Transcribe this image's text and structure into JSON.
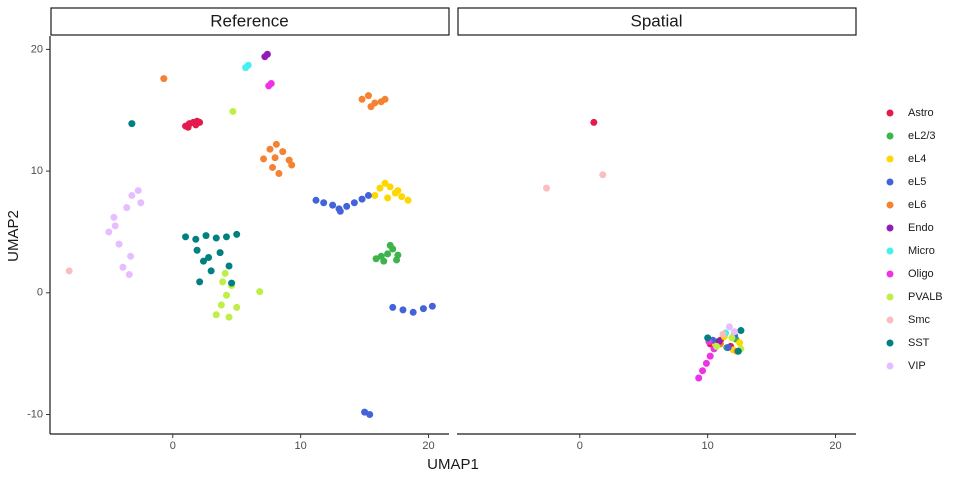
{
  "chart_data": {
    "type": "scatter",
    "facets": [
      "Reference",
      "Spatial"
    ],
    "xlabel": "UMAP1",
    "ylabel": "UMAP2",
    "xlim": [
      -9.6,
      21.6
    ],
    "ylim": [
      -11.6,
      21.1
    ],
    "xticks": [
      0,
      10,
      20
    ],
    "yticks": [
      -10,
      0,
      10,
      20
    ],
    "series": [
      {
        "name": "Astro",
        "color": "#e31a4a",
        "points": [
          {
            "x": [
              1.0,
              1.3,
              1.6,
              1.9,
              2.1,
              1.2,
              1.8
            ],
            "y": [
              13.7,
              13.9,
              14.0,
              14.1,
              14.0,
              13.6,
              13.8
            ]
          },
          {
            "x": [
              1.1,
              10.2,
              10.5,
              11.0,
              11.8
            ],
            "y": [
              14.0,
              -4.2,
              -4.6,
              -3.9,
              -4.4
            ]
          }
        ]
      },
      {
        "name": "eL2/3",
        "color": "#3cb44b",
        "points": [
          {
            "x": [
              15.9,
              16.3,
              16.8,
              17.2,
              17.6,
              16.5,
              17.0,
              17.5
            ],
            "y": [
              2.8,
              3.0,
              3.2,
              3.6,
              3.1,
              2.6,
              3.9,
              2.7
            ]
          },
          {
            "x": [
              10.8,
              11.5,
              12.2
            ],
            "y": [
              -4.0,
              -4.5,
              -3.8
            ]
          }
        ]
      },
      {
        "name": "eL4",
        "color": "#ffd700",
        "points": [
          {
            "x": [
              15.8,
              16.2,
              16.6,
              17.0,
              17.4,
              17.9,
              18.4,
              16.8,
              17.6
            ],
            "y": [
              8.0,
              8.6,
              9.0,
              8.7,
              8.2,
              7.9,
              7.6,
              7.8,
              8.4
            ]
          },
          {
            "x": [
              10.6,
              11.3,
              12.0,
              12.5
            ],
            "y": [
              -4.3,
              -3.6,
              -4.7,
              -4.1
            ]
          }
        ]
      },
      {
        "name": "eL5",
        "color": "#4363d8",
        "points": [
          {
            "x": [
              11.2,
              11.8,
              12.5,
              13.0,
              13.6,
              14.2,
              14.8,
              15.3,
              13.1,
              17.2,
              18.0,
              18.8,
              19.6,
              20.3,
              15.0,
              15.4
            ],
            "y": [
              7.6,
              7.4,
              7.2,
              6.9,
              7.1,
              7.4,
              7.7,
              8.0,
              6.7,
              -1.2,
              -1.4,
              -1.6,
              -1.3,
              -1.1,
              -9.8,
              -10.0
            ]
          },
          {
            "x": [
              10.4,
              11.6,
              12.1
            ],
            "y": [
              -3.9,
              -4.5,
              -3.5
            ]
          }
        ]
      },
      {
        "name": "eL6",
        "color": "#f58231",
        "points": [
          {
            "x": [
              14.8,
              15.3,
              15.8,
              16.3,
              16.6,
              15.5,
              7.1,
              7.6,
              8.1,
              8.6,
              9.1,
              9.3,
              8.3,
              7.8,
              8.0,
              -0.7
            ],
            "y": [
              15.9,
              16.2,
              15.6,
              15.7,
              15.9,
              15.3,
              11.0,
              11.8,
              12.2,
              11.6,
              10.9,
              10.5,
              9.8,
              10.3,
              11.1,
              17.6
            ]
          },
          {
            "x": [
              11.0,
              12.3
            ],
            "y": [
              -4.2,
              -4.8
            ]
          }
        ]
      },
      {
        "name": "Endo",
        "color": "#911eb4",
        "points": [
          {
            "x": [
              7.2,
              7.4
            ],
            "y": [
              19.4,
              19.6
            ]
          },
          {
            "x": [
              10.9
            ],
            "y": [
              -4.0
            ]
          }
        ]
      },
      {
        "name": "Micro",
        "color": "#46f0f0",
        "points": [
          {
            "x": [
              5.7,
              5.9
            ],
            "y": [
              18.5,
              18.7
            ]
          },
          {
            "x": [
              11.4
            ],
            "y": [
              -3.3
            ]
          }
        ]
      },
      {
        "name": "Oligo",
        "color": "#f032e6",
        "points": [
          {
            "x": [
              7.5,
              7.7
            ],
            "y": [
              17.0,
              17.2
            ]
          },
          {
            "x": [
              9.3,
              9.6,
              9.9,
              10.2,
              10.5,
              10.1
            ],
            "y": [
              -7.0,
              -6.4,
              -5.8,
              -5.2,
              -4.6,
              -4.0
            ]
          }
        ]
      },
      {
        "name": "PVALB",
        "color": "#bfef45",
        "points": [
          {
            "x": [
              3.4,
              3.8,
              4.2,
              4.6,
              5.0,
              3.9,
              4.4,
              4.1,
              6.8,
              4.7
            ],
            "y": [
              -1.8,
              -1.0,
              -0.2,
              0.6,
              -1.2,
              0.9,
              -2.0,
              1.6,
              0.1,
              14.9
            ]
          },
          {
            "x": [
              10.7,
              11.9,
              12.6
            ],
            "y": [
              -4.4,
              -3.7,
              -4.6
            ]
          }
        ]
      },
      {
        "name": "Smc",
        "color": "#fabebe",
        "points": [
          {
            "x": [
              -8.1
            ],
            "y": [
              1.8
            ]
          },
          {
            "x": [
              1.8,
              -2.6,
              11.2
            ],
            "y": [
              9.7,
              8.6,
              -3.4
            ]
          }
        ]
      },
      {
        "name": "SST",
        "color": "#008080",
        "points": [
          {
            "x": [
              1.0,
              1.8,
              2.6,
              3.4,
              4.2,
              5.0,
              1.9,
              2.4,
              3.0,
              3.7,
              4.4,
              4.6,
              2.1,
              2.8,
              -3.2
            ],
            "y": [
              4.6,
              4.4,
              4.7,
              4.5,
              4.6,
              4.8,
              3.5,
              2.6,
              1.8,
              3.3,
              2.2,
              0.8,
              0.9,
              2.9,
              13.9
            ]
          },
          {
            "x": [
              10.0,
              12.6,
              12.4
            ],
            "y": [
              -3.7,
              -3.1,
              -4.8
            ]
          }
        ]
      },
      {
        "name": "VIP",
        "color": "#e6beff",
        "points": [
          {
            "x": [
              -5.0,
              -4.6,
              -4.2,
              -3.6,
              -3.2,
              -2.7,
              -2.5,
              -3.3,
              -3.9,
              -4.5,
              -3.4
            ],
            "y": [
              5.0,
              6.2,
              4.0,
              7.0,
              8.0,
              8.4,
              7.4,
              3.0,
              2.1,
              5.5,
              1.5
            ]
          },
          {
            "x": [
              11.7,
              12.1
            ],
            "y": [
              -2.8,
              -3.2
            ]
          }
        ]
      }
    ]
  }
}
